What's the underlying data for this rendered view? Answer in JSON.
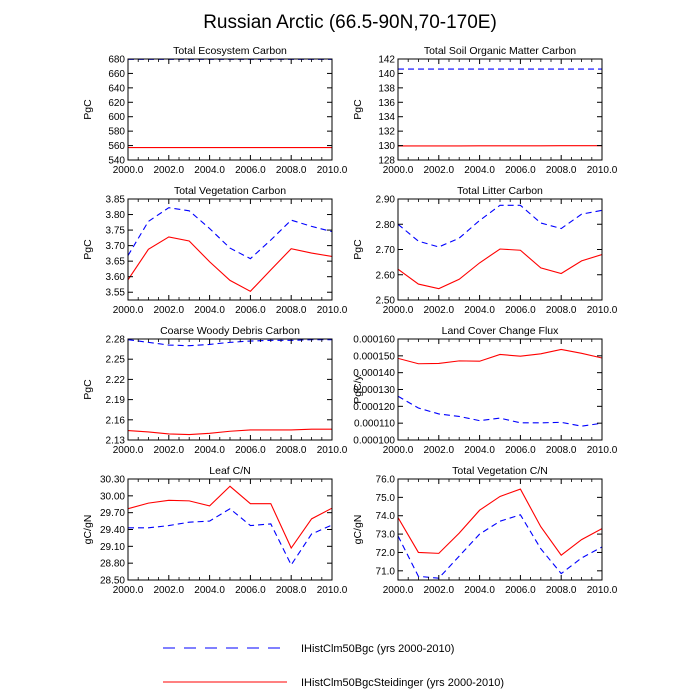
{
  "figure_title": "Russian Arctic (66.5-90N,70-170E)",
  "legend": [
    {
      "label": "IHistClm50Bgc (yrs 2000-2010)",
      "color": "#0000ff",
      "dash": true
    },
    {
      "label": "IHistClm50BgcSteidinger (yrs 2000-2010)",
      "color": "#ff0000",
      "dash": false
    }
  ],
  "chart_data": [
    {
      "type": "line",
      "title": "Total Ecosystem Carbon",
      "ylabel": "PgC",
      "xlim": [
        2000,
        2010
      ],
      "ylim": [
        540,
        680
      ],
      "xticks": [
        "2000.0",
        "2002.0",
        "2004.0",
        "2006.0",
        "2008.0",
        "2010.0"
      ],
      "yticks": [
        "540",
        "560",
        "580",
        "600",
        "620",
        "640",
        "660",
        "680"
      ],
      "x": [
        2000,
        2001,
        2002,
        2003,
        2004,
        2005,
        2006,
        2007,
        2008,
        2009,
        2010
      ],
      "series": [
        {
          "name": "IHistClm50Bgc (yrs 2000-2010)",
          "color": "#0000ff",
          "dash": true,
          "values": [
            679.5,
            679.5,
            679.5,
            679.5,
            679.5,
            679.5,
            679.5,
            679.5,
            679.5,
            679.5,
            679.5
          ]
        },
        {
          "name": "IHistClm50BgcSteidinger (yrs 2000-2010)",
          "color": "#ff0000",
          "dash": false,
          "values": [
            557.2,
            557.2,
            557.2,
            557.2,
            557.2,
            557.2,
            557.2,
            557.2,
            557.2,
            557.2,
            557.2
          ]
        }
      ]
    },
    {
      "type": "line",
      "title": "Total Soil Organic Matter Carbon",
      "ylabel": "PgC",
      "xlim": [
        2000,
        2010
      ],
      "ylim": [
        128,
        142
      ],
      "xticks": [
        "2000.0",
        "2002.0",
        "2004.0",
        "2006.0",
        "2008.0",
        "2010.0"
      ],
      "yticks": [
        "128",
        "130",
        "132",
        "134",
        "136",
        "138",
        "140",
        "142"
      ],
      "x": [
        2000,
        2001,
        2002,
        2003,
        2004,
        2005,
        2006,
        2007,
        2008,
        2009,
        2010
      ],
      "series": [
        {
          "name": "IHistClm50Bgc (yrs 2000-2010)",
          "color": "#0000ff",
          "dash": true,
          "values": [
            140.6,
            140.6,
            140.6,
            140.6,
            140.6,
            140.6,
            140.6,
            140.6,
            140.6,
            140.6,
            140.6
          ]
        },
        {
          "name": "IHistClm50BgcSteidinger (yrs 2000-2010)",
          "color": "#ff0000",
          "dash": false,
          "values": [
            129.95,
            129.95,
            129.95,
            129.95,
            129.96,
            129.96,
            129.97,
            129.97,
            129.98,
            129.98,
            129.98
          ]
        }
      ]
    },
    {
      "type": "line",
      "title": "Total Vegetation Carbon",
      "ylabel": "PgC",
      "xlim": [
        2000,
        2010
      ],
      "ylim": [
        3.525,
        3.85
      ],
      "xticks": [
        "2000.0",
        "2002.0",
        "2004.0",
        "2006.0",
        "2008.0",
        "2010.0"
      ],
      "yticks": [
        "3.55",
        "3.60",
        "3.65",
        "3.70",
        "3.75",
        "3.80",
        "3.85"
      ],
      "x": [
        2000,
        2001,
        2002,
        2003,
        2004,
        2005,
        2006,
        2007,
        2008,
        2009,
        2010
      ],
      "series": [
        {
          "name": "IHistClm50Bgc (yrs 2000-2010)",
          "color": "#0000ff",
          "dash": true,
          "values": [
            3.668,
            3.778,
            3.822,
            3.812,
            3.755,
            3.692,
            3.658,
            3.718,
            3.782,
            3.762,
            3.745
          ]
        },
        {
          "name": "IHistClm50BgcSteidinger (yrs 2000-2010)",
          "color": "#ff0000",
          "dash": false,
          "values": [
            3.59,
            3.688,
            3.728,
            3.715,
            3.648,
            3.588,
            3.553,
            3.622,
            3.69,
            3.676,
            3.665
          ]
        }
      ]
    },
    {
      "type": "line",
      "title": "Total Litter Carbon",
      "ylabel": "PgC",
      "xlim": [
        2000,
        2010
      ],
      "ylim": [
        2.5,
        2.9
      ],
      "xticks": [
        "2000.0",
        "2002.0",
        "2004.0",
        "2006.0",
        "2008.0",
        "2010.0"
      ],
      "yticks": [
        "2.50",
        "2.60",
        "2.70",
        "2.80",
        "2.90"
      ],
      "x": [
        2000,
        2001,
        2002,
        2003,
        2004,
        2005,
        2006,
        2007,
        2008,
        2009,
        2010
      ],
      "series": [
        {
          "name": "IHistClm50Bgc (yrs 2000-2010)",
          "color": "#0000ff",
          "dash": true,
          "values": [
            2.8,
            2.733,
            2.71,
            2.745,
            2.815,
            2.875,
            2.875,
            2.805,
            2.783,
            2.84,
            2.855
          ]
        },
        {
          "name": "IHistClm50BgcSteidinger (yrs 2000-2010)",
          "color": "#ff0000",
          "dash": false,
          "values": [
            2.622,
            2.563,
            2.545,
            2.582,
            2.647,
            2.702,
            2.697,
            2.627,
            2.605,
            2.655,
            2.68
          ]
        }
      ]
    },
    {
      "type": "line",
      "title": "Coarse Woody Debris Carbon",
      "ylabel": "PgC",
      "xlim": [
        2000,
        2010
      ],
      "ylim": [
        2.13,
        2.28
      ],
      "xticks": [
        "2000.0",
        "2002.0",
        "2004.0",
        "2006.0",
        "2008.0",
        "2010.0"
      ],
      "yticks": [
        "2.13",
        "2.16",
        "2.19",
        "2.22",
        "2.25",
        "2.28"
      ],
      "x": [
        2000,
        2001,
        2002,
        2003,
        2004,
        2005,
        2006,
        2007,
        2008,
        2009,
        2010
      ],
      "series": [
        {
          "name": "IHistClm50Bgc (yrs 2000-2010)",
          "color": "#0000ff",
          "dash": true,
          "values": [
            2.279,
            2.275,
            2.271,
            2.27,
            2.272,
            2.275,
            2.277,
            2.278,
            2.278,
            2.279,
            2.279
          ]
        },
        {
          "name": "IHistClm50BgcSteidinger (yrs 2000-2010)",
          "color": "#ff0000",
          "dash": false,
          "values": [
            2.144,
            2.142,
            2.139,
            2.138,
            2.14,
            2.143,
            2.145,
            2.145,
            2.145,
            2.146,
            2.146
          ]
        }
      ]
    },
    {
      "type": "line",
      "title": "Land Cover Change Flux",
      "ylabel": "PgC/y",
      "xlim": [
        2000,
        2010
      ],
      "ylim": [
        0.0001,
        0.00016
      ],
      "xticks": [
        "2000.0",
        "2002.0",
        "2004.0",
        "2006.0",
        "2008.0",
        "2010.0"
      ],
      "yticks": [
        "0.000100",
        "0.000110",
        "0.000120",
        "0.000130",
        "0.000140",
        "0.000150",
        "0.000160"
      ],
      "x": [
        2000,
        2001,
        2002,
        2003,
        2004,
        2005,
        2006,
        2007,
        2008,
        2009,
        2010
      ],
      "series": [
        {
          "name": "IHistClm50Bgc (yrs 2000-2010)",
          "color": "#0000ff",
          "dash": true,
          "values": [
            0.000126,
            0.000119,
            0.0001155,
            0.000114,
            0.0001115,
            0.000113,
            0.0001102,
            0.0001102,
            0.0001105,
            0.0001082,
            0.00011
          ]
        },
        {
          "name": "IHistClm50BgcSteidinger (yrs 2000-2010)",
          "color": "#ff0000",
          "dash": false,
          "values": [
            0.0001485,
            0.0001453,
            0.0001455,
            0.000147,
            0.0001468,
            0.0001508,
            0.0001498,
            0.0001512,
            0.0001538,
            0.0001515,
            0.0001487
          ]
        }
      ]
    },
    {
      "type": "line",
      "title": "Leaf C/N",
      "ylabel": "gC/gN",
      "xlim": [
        2000,
        2010
      ],
      "ylim": [
        28.5,
        30.3
      ],
      "xticks": [
        "2000.0",
        "2002.0",
        "2004.0",
        "2006.0",
        "2008.0",
        "2010.0"
      ],
      "yticks": [
        "28.50",
        "28.80",
        "29.10",
        "29.40",
        "29.70",
        "30.00",
        "30.30"
      ],
      "x": [
        2000,
        2001,
        2002,
        2003,
        2004,
        2005,
        2006,
        2007,
        2008,
        2009,
        2010
      ],
      "series": [
        {
          "name": "IHistClm50Bgc (yrs 2000-2010)",
          "color": "#0000ff",
          "dash": true,
          "values": [
            29.43,
            29.43,
            29.47,
            29.53,
            29.55,
            29.77,
            29.47,
            29.5,
            28.77,
            29.32,
            29.48
          ]
        },
        {
          "name": "IHistClm50BgcSteidinger (yrs 2000-2010)",
          "color": "#ff0000",
          "dash": false,
          "values": [
            29.77,
            29.87,
            29.92,
            29.91,
            29.82,
            30.17,
            29.86,
            29.86,
            29.07,
            29.59,
            29.78
          ]
        }
      ]
    },
    {
      "type": "line",
      "title": "Total Vegetation C/N",
      "ylabel": "gC/gN",
      "xlim": [
        2000,
        2010
      ],
      "ylim": [
        70.5,
        76
      ],
      "xticks": [
        "2000.0",
        "2002.0",
        "2004.0",
        "2006.0",
        "2008.0",
        "2010.0"
      ],
      "yticks": [
        "71.0",
        "72.0",
        "73.0",
        "74.0",
        "75.0",
        "76.0"
      ],
      "x": [
        2000,
        2001,
        2002,
        2003,
        2004,
        2005,
        2006,
        2007,
        2008,
        2009,
        2010
      ],
      "series": [
        {
          "name": "IHistClm50Bgc (yrs 2000-2010)",
          "color": "#0000ff",
          "dash": true,
          "values": [
            72.9,
            70.7,
            70.6,
            71.8,
            73.0,
            73.7,
            74.05,
            72.2,
            70.85,
            71.7,
            72.3
          ]
        },
        {
          "name": "IHistClm50BgcSteidinger (yrs 2000-2010)",
          "color": "#ff0000",
          "dash": false,
          "values": [
            73.9,
            72.0,
            71.95,
            73.05,
            74.3,
            75.05,
            75.45,
            73.4,
            71.85,
            72.7,
            73.3
          ]
        }
      ]
    }
  ]
}
